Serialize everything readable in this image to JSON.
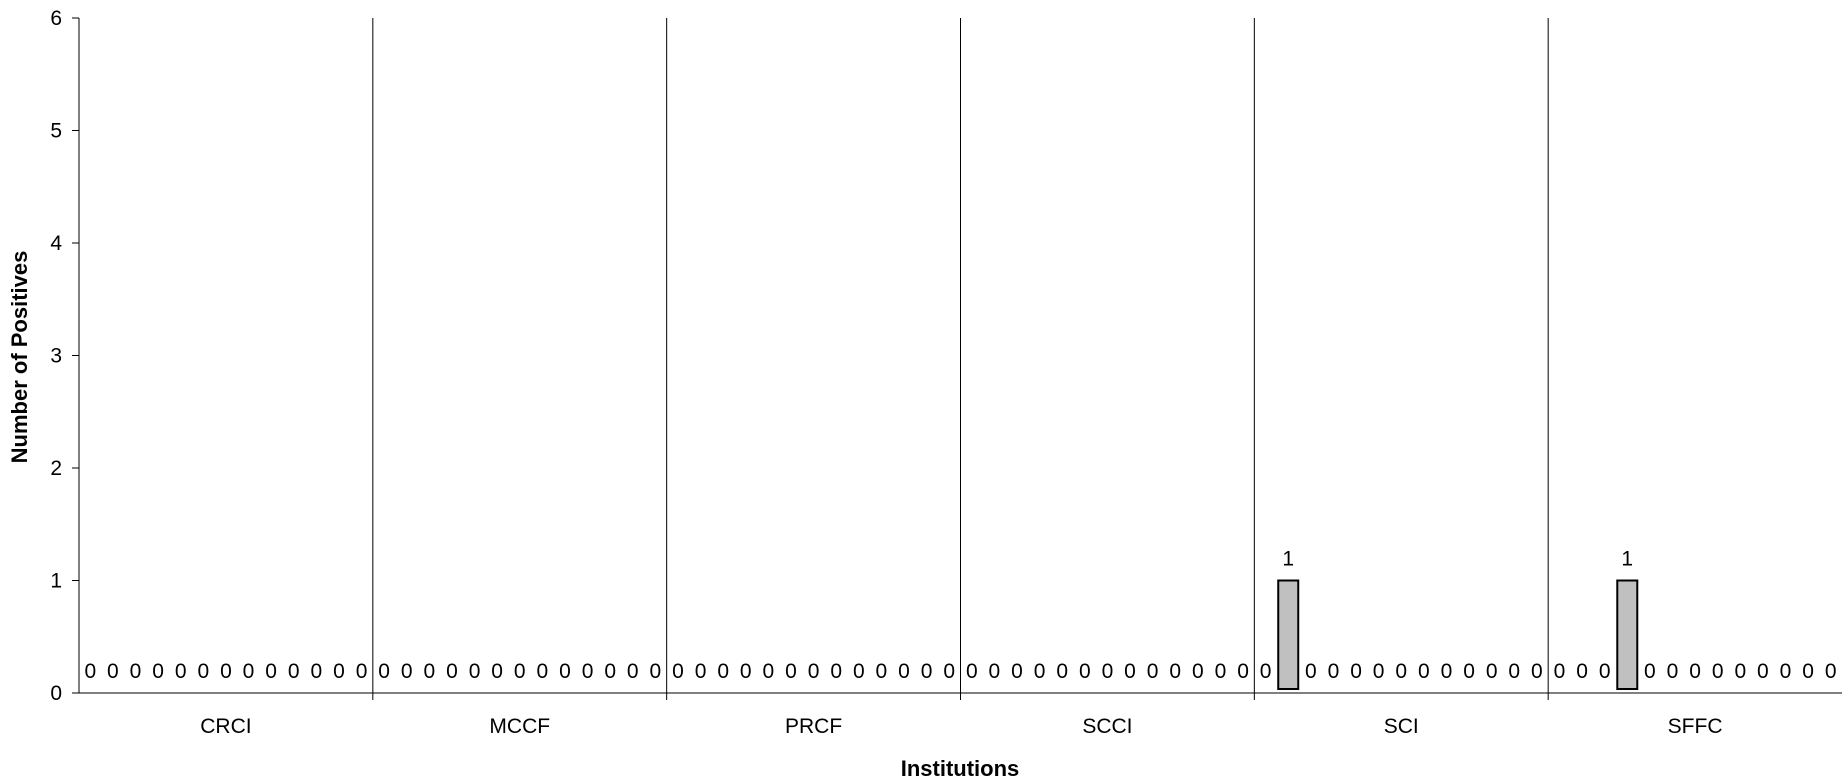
{
  "chart_data": {
    "type": "bar",
    "xlabel": "Institutions",
    "ylabel": "Number of Positives",
    "ylim": [
      0,
      6
    ],
    "yticks": [
      "0",
      "1",
      "2",
      "3",
      "4",
      "5",
      "6"
    ],
    "grid": false,
    "legend": "none",
    "bar_color": "#c0c0c0",
    "groups": [
      {
        "name": "CRCI",
        "values": [
          0,
          0,
          0,
          0,
          0,
          0,
          0,
          0,
          0,
          0,
          0,
          0,
          0
        ]
      },
      {
        "name": "MCCF",
        "values": [
          0,
          0,
          0,
          0,
          0,
          0,
          0,
          0,
          0,
          0,
          0,
          0,
          0
        ]
      },
      {
        "name": "PRCF",
        "values": [
          0,
          0,
          0,
          0,
          0,
          0,
          0,
          0,
          0,
          0,
          0,
          0,
          0
        ]
      },
      {
        "name": "SCCI",
        "values": [
          0,
          0,
          0,
          0,
          0,
          0,
          0,
          0,
          0,
          0,
          0,
          0,
          0
        ]
      },
      {
        "name": "SCI",
        "values": [
          0,
          1,
          0,
          0,
          0,
          0,
          0,
          0,
          0,
          0,
          0,
          0,
          0
        ]
      },
      {
        "name": "SFFC",
        "values": [
          0,
          0,
          0,
          1,
          0,
          0,
          0,
          0,
          0,
          0,
          0,
          0,
          0
        ]
      }
    ]
  }
}
